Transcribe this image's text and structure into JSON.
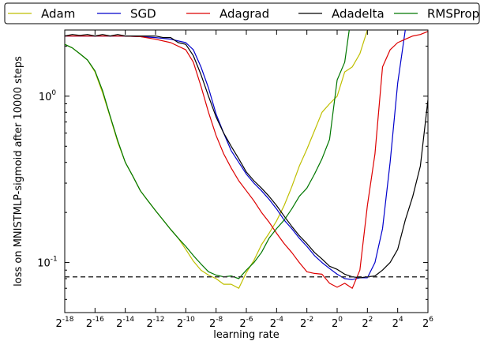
{
  "chart_data": {
    "type": "line",
    "title": "",
    "xlabel": "learning rate",
    "ylabel": "loss on MNISTMLP-sigmoid after 10000 steps",
    "xscale": "log2",
    "yscale": "log10",
    "xlim": [
      -18,
      6
    ],
    "ylim": [
      0.05,
      2.5
    ],
    "x_ticks": [
      {
        "base": "2",
        "exp": "-18",
        "value": -18
      },
      {
        "base": "2",
        "exp": "-16",
        "value": -16
      },
      {
        "base": "2",
        "exp": "-14",
        "value": -14
      },
      {
        "base": "2",
        "exp": "-12",
        "value": -12
      },
      {
        "base": "2",
        "exp": "-10",
        "value": -10
      },
      {
        "base": "2",
        "exp": "-8",
        "value": -8
      },
      {
        "base": "2",
        "exp": "-6",
        "value": -6
      },
      {
        "base": "2",
        "exp": "-4",
        "value": -4
      },
      {
        "base": "2",
        "exp": "-2",
        "value": -2
      },
      {
        "base": "2",
        "exp": "0",
        "value": 0
      },
      {
        "base": "2",
        "exp": "2",
        "value": 2
      },
      {
        "base": "2",
        "exp": "4",
        "value": 4
      },
      {
        "base": "2",
        "exp": "6",
        "value": 6
      }
    ],
    "y_ticks": [
      {
        "base": "10",
        "exp": "0",
        "value": 1.0
      },
      {
        "base": "10",
        "exp": "-1",
        "value": 0.1
      }
    ],
    "reference_line": {
      "y": 0.082,
      "style": "dashed",
      "color": "#333333"
    },
    "legend_position": "top, outside, single row",
    "grid": false,
    "series": [
      {
        "name": "Adam",
        "color": "#bfbf00",
        "x": [
          -18,
          -17.5,
          -17,
          -16.5,
          -16,
          -15.5,
          -15,
          -14.5,
          -14,
          -13.5,
          -13,
          -12.5,
          -12,
          -11.5,
          -11,
          -10.5,
          -10,
          -9.5,
          -9,
          -8.5,
          -8,
          -7.5,
          -7,
          -6.5,
          -6,
          -5.5,
          -5,
          -4.5,
          -4,
          -3.5,
          -3,
          -2.5,
          -2,
          -1.5,
          -1,
          -0.5,
          0,
          0.5,
          1,
          1.5,
          2
        ],
        "y": [
          2.05,
          1.95,
          1.8,
          1.65,
          1.4,
          1.05,
          0.75,
          0.53,
          0.4,
          0.33,
          0.27,
          0.235,
          0.205,
          0.18,
          0.158,
          0.14,
          0.12,
          0.102,
          0.09,
          0.084,
          0.08,
          0.074,
          0.074,
          0.07,
          0.087,
          0.103,
          0.128,
          0.15,
          0.178,
          0.22,
          0.285,
          0.38,
          0.48,
          0.62,
          0.8,
          0.9,
          1.0,
          1.4,
          1.5,
          1.8,
          2.5
        ]
      },
      {
        "name": "SGD",
        "color": "#0000cc",
        "x": [
          -18,
          -17,
          -16,
          -15,
          -14,
          -13,
          -12,
          -11,
          -10,
          -9.5,
          -9,
          -8.5,
          -8,
          -7.5,
          -7,
          -6.5,
          -6,
          -5.5,
          -5,
          -4.5,
          -4,
          -3.5,
          -3,
          -2.5,
          -2,
          -1.5,
          -1,
          -0.5,
          0,
          0.5,
          1,
          1.5,
          2,
          2.5,
          3,
          3.5,
          4,
          4.5
        ],
        "y": [
          2.3,
          2.3,
          2.3,
          2.3,
          2.3,
          2.28,
          2.25,
          2.2,
          2.1,
          1.9,
          1.5,
          1.12,
          0.78,
          0.6,
          0.47,
          0.4,
          0.34,
          0.3,
          0.27,
          0.24,
          0.21,
          0.18,
          0.16,
          0.14,
          0.125,
          0.11,
          0.1,
          0.092,
          0.085,
          0.08,
          0.079,
          0.081,
          0.081,
          0.1,
          0.16,
          0.4,
          1.2,
          2.5
        ]
      },
      {
        "name": "Adagrad",
        "color": "#dd0000",
        "x": [
          -18,
          -17,
          -16,
          -15,
          -14,
          -13,
          -12,
          -11,
          -10,
          -9.5,
          -9,
          -8.5,
          -8,
          -7.5,
          -7,
          -6.5,
          -6,
          -5.5,
          -5,
          -4.5,
          -4,
          -3.5,
          -3,
          -2.5,
          -2,
          -1.5,
          -1,
          -0.5,
          0,
          0.5,
          1,
          1.5,
          2,
          2.5,
          3,
          3.5,
          4,
          4.5,
          5,
          5.5,
          6
        ],
        "y": [
          2.3,
          2.3,
          2.3,
          2.3,
          2.3,
          2.28,
          2.2,
          2.1,
          1.9,
          1.6,
          1.15,
          0.8,
          0.58,
          0.45,
          0.37,
          0.31,
          0.27,
          0.235,
          0.2,
          0.175,
          0.15,
          0.13,
          0.115,
          0.1,
          0.088,
          0.086,
          0.085,
          0.075,
          0.071,
          0.075,
          0.07,
          0.09,
          0.22,
          0.45,
          1.5,
          1.9,
          2.1,
          2.2,
          2.3,
          2.35,
          2.45
        ]
      },
      {
        "name": "Adadelta",
        "color": "#000000",
        "x": [
          -18,
          -17.5,
          -17,
          -16.5,
          -16,
          -15.5,
          -15,
          -14.5,
          -14,
          -13.5,
          -13,
          -12.5,
          -12,
          -11.5,
          -11,
          -10.5,
          -10,
          -9.5,
          -9,
          -8.5,
          -8,
          -7.5,
          -7,
          -6.5,
          -6,
          -5.5,
          -5,
          -4.5,
          -4,
          -3.5,
          -3,
          -2.5,
          -2,
          -1.5,
          -1,
          -0.5,
          0,
          0.5,
          1,
          1.5,
          2,
          2.5,
          3,
          3.5,
          4,
          4.5,
          5,
          5.5,
          6
        ],
        "y": [
          2.3,
          2.35,
          2.32,
          2.35,
          2.3,
          2.35,
          2.3,
          2.35,
          2.3,
          2.3,
          2.3,
          2.3,
          2.3,
          2.25,
          2.25,
          2.1,
          2.05,
          1.75,
          1.35,
          1.0,
          0.75,
          0.6,
          0.5,
          0.42,
          0.35,
          0.31,
          0.28,
          0.25,
          0.22,
          0.19,
          0.165,
          0.145,
          0.13,
          0.115,
          0.105,
          0.095,
          0.091,
          0.085,
          0.082,
          0.081,
          0.082,
          0.083,
          0.09,
          0.1,
          0.12,
          0.18,
          0.25,
          0.38,
          0.95
        ]
      },
      {
        "name": "RMSProp",
        "color": "#007700",
        "x": [
          -18,
          -17.5,
          -17,
          -16.5,
          -16,
          -15.5,
          -15,
          -14.5,
          -14,
          -13.5,
          -13,
          -12.5,
          -12,
          -11.5,
          -11,
          -10.5,
          -10,
          -9.5,
          -9,
          -8.5,
          -8,
          -7.5,
          -7,
          -6.5,
          -6,
          -5.5,
          -5,
          -4.5,
          -4,
          -3.5,
          -3,
          -2.5,
          -2,
          -1.5,
          -1,
          -0.5,
          0,
          0.5,
          0.8
        ],
        "y": [
          2.05,
          1.95,
          1.8,
          1.65,
          1.42,
          1.08,
          0.76,
          0.54,
          0.4,
          0.33,
          0.27,
          0.235,
          0.205,
          0.18,
          0.158,
          0.14,
          0.125,
          0.11,
          0.098,
          0.088,
          0.084,
          0.082,
          0.083,
          0.08,
          0.09,
          0.1,
          0.115,
          0.14,
          0.16,
          0.18,
          0.21,
          0.25,
          0.28,
          0.34,
          0.42,
          0.55,
          1.25,
          1.6,
          2.5
        ]
      }
    ]
  }
}
